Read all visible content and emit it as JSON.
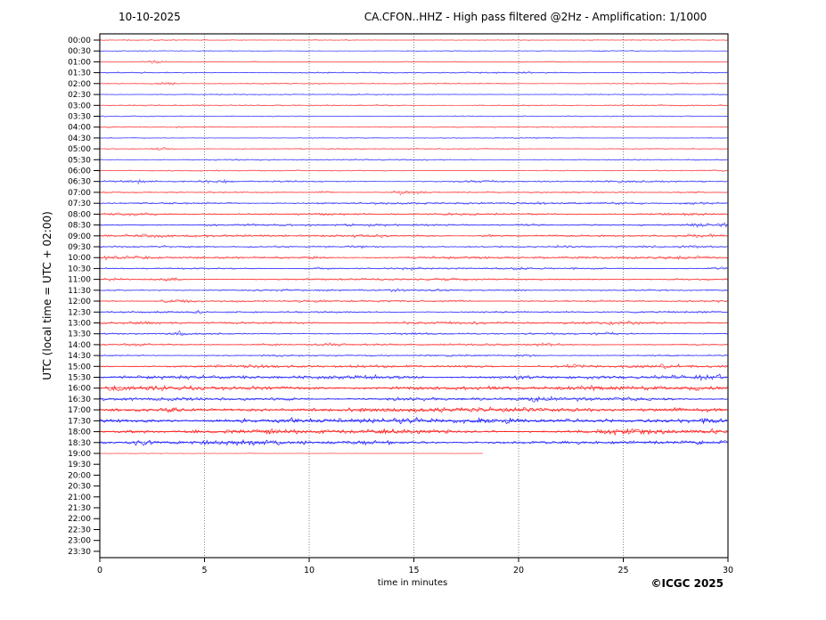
{
  "header": {
    "date": "10-10-2025",
    "title": "CA.CFON..HHZ - High pass filtered @2Hz - Amplification: 1/1000"
  },
  "axes": {
    "x_label": "time in minutes",
    "y_label": "UTC (local time = UTC + 02:00)",
    "x_ticks": [
      0,
      5,
      10,
      15,
      20,
      25,
      30
    ],
    "x_gridlines": [
      5,
      10,
      15,
      20,
      25
    ],
    "x_range": [
      0,
      30
    ]
  },
  "footer": {
    "copyright": "©ICGC 2025"
  },
  "colors": {
    "red": "#ff0000",
    "blue": "#0000ff",
    "grid": "#666666",
    "frame": "#000000",
    "background": "#ffffff"
  },
  "chart_data": {
    "type": "line",
    "title": "CA.CFON..HHZ - High pass filtered @2Hz - Amplification: 1/1000",
    "xlabel": "time in minutes",
    "ylabel": "UTC (local time = UTC + 02:00)",
    "x_range_minutes": [
      0,
      30
    ],
    "row_interval_minutes": 30,
    "rows": [
      {
        "time": "00:00",
        "color": "red",
        "activity": 0.3,
        "events": []
      },
      {
        "time": "00:30",
        "color": "blue",
        "activity": 0.35,
        "events": []
      },
      {
        "time": "01:00",
        "color": "red",
        "activity": 0.35,
        "events": [
          [
            2.7,
            1.5,
            0.25
          ],
          [
            7.4,
            0.6,
            0.2
          ]
        ]
      },
      {
        "time": "01:30",
        "color": "blue",
        "activity": 0.7,
        "events": []
      },
      {
        "time": "02:00",
        "color": "red",
        "activity": 0.5,
        "events": [
          [
            3.1,
            1.3,
            0.5
          ]
        ]
      },
      {
        "time": "02:30",
        "color": "blue",
        "activity": 0.45,
        "events": []
      },
      {
        "time": "03:00",
        "color": "red",
        "activity": 0.45,
        "events": [
          [
            13.8,
            0.6,
            0.4
          ],
          [
            24.8,
            0.6,
            0.3
          ]
        ]
      },
      {
        "time": "03:30",
        "color": "blue",
        "activity": 0.4,
        "events": []
      },
      {
        "time": "04:00",
        "color": "red",
        "activity": 0.45,
        "events": [
          [
            3.9,
            0.8,
            0.2
          ]
        ]
      },
      {
        "time": "04:30",
        "color": "blue",
        "activity": 0.45,
        "events": []
      },
      {
        "time": "05:00",
        "color": "red",
        "activity": 0.45,
        "events": [
          [
            3.0,
            1.4,
            0.3
          ]
        ]
      },
      {
        "time": "05:30",
        "color": "blue",
        "activity": 0.55,
        "events": []
      },
      {
        "time": "06:00",
        "color": "red",
        "activity": 0.45,
        "events": []
      },
      {
        "time": "06:30",
        "color": "blue",
        "activity": 0.75,
        "events": [
          [
            1.8,
            1.3,
            0.4
          ],
          [
            5.6,
            1.1,
            0.5
          ],
          [
            18.3,
            0.7,
            0.6
          ],
          [
            24.8,
            0.6,
            0.5
          ]
        ]
      },
      {
        "time": "07:00",
        "color": "red",
        "activity": 0.65,
        "events": [
          [
            10.7,
            1.4,
            0.3
          ],
          [
            14.6,
            1.7,
            0.5
          ],
          [
            28.2,
            0.8,
            0.5
          ]
        ]
      },
      {
        "time": "07:30",
        "color": "blue",
        "activity": 1.1,
        "events": [
          [
            25.0,
            0.9,
            0.8
          ],
          [
            28.5,
            0.8,
            0.6
          ]
        ]
      },
      {
        "time": "08:00",
        "color": "red",
        "activity": 1.1,
        "events": [
          [
            1.8,
            0.8,
            0.8
          ],
          [
            27.6,
            1.0,
            0.7
          ]
        ]
      },
      {
        "time": "08:30",
        "color": "blue",
        "activity": 1.1,
        "events": [
          [
            12.5,
            0.6,
            0.8
          ],
          [
            20.5,
            0.8,
            0.5
          ],
          [
            29.0,
            1.2,
            0.9
          ]
        ]
      },
      {
        "time": "09:00",
        "color": "red",
        "activity": 1.2,
        "events": [
          [
            1.5,
            0.9,
            1.2
          ],
          [
            13.0,
            0.7,
            0.6
          ],
          [
            18.6,
            0.8,
            0.5
          ],
          [
            28.6,
            0.8,
            0.5
          ]
        ]
      },
      {
        "time": "09:30",
        "color": "blue",
        "activity": 1.0,
        "events": [
          [
            12.6,
            0.8,
            0.5
          ],
          [
            15.2,
            0.7,
            0.5
          ],
          [
            22.2,
            0.7,
            0.5
          ],
          [
            28.3,
            0.7,
            0.4
          ]
        ]
      },
      {
        "time": "10:00",
        "color": "red",
        "activity": 1.2,
        "events": [
          [
            1.0,
            0.8,
            0.9
          ],
          [
            10.3,
            0.6,
            0.6
          ],
          [
            27.9,
            1.1,
            1.2
          ]
        ]
      },
      {
        "time": "10:30",
        "color": "blue",
        "activity": 0.9,
        "events": [
          [
            10.6,
            0.8,
            0.5
          ],
          [
            14.9,
            0.7,
            0.4
          ],
          [
            19.9,
            0.8,
            0.4
          ],
          [
            29.6,
            0.9,
            0.4
          ]
        ]
      },
      {
        "time": "11:00",
        "color": "red",
        "activity": 1.0,
        "events": [
          [
            0.5,
            0.7,
            0.4
          ],
          [
            3.4,
            2.7,
            0.25
          ],
          [
            16.5,
            0.6,
            0.7
          ],
          [
            23.5,
            0.6,
            0.5
          ]
        ]
      },
      {
        "time": "11:30",
        "color": "blue",
        "activity": 0.9,
        "events": [
          [
            14.1,
            0.7,
            0.4
          ],
          [
            20.1,
            0.8,
            0.4
          ]
        ]
      },
      {
        "time": "12:00",
        "color": "red",
        "activity": 1.0,
        "events": [
          [
            3.7,
            0.8,
            0.5
          ],
          [
            10.2,
            0.7,
            0.5
          ],
          [
            17.0,
            0.7,
            0.6
          ]
        ]
      },
      {
        "time": "12:30",
        "color": "blue",
        "activity": 0.9,
        "events": [
          [
            4.6,
            0.8,
            0.4
          ],
          [
            18.8,
            0.7,
            0.5
          ]
        ]
      },
      {
        "time": "13:00",
        "color": "red",
        "activity": 1.2,
        "events": [
          [
            2.3,
            0.8,
            0.6
          ],
          [
            16.0,
            0.8,
            1.5
          ],
          [
            24.6,
            0.9,
            0.6
          ]
        ]
      },
      {
        "time": "13:30",
        "color": "blue",
        "activity": 1.0,
        "events": [
          [
            3.9,
            1.8,
            0.3
          ],
          [
            15.4,
            0.7,
            0.5
          ],
          [
            24.1,
            0.7,
            0.5
          ]
        ]
      },
      {
        "time": "14:00",
        "color": "red",
        "activity": 1.0,
        "events": [
          [
            1.6,
            0.8,
            0.5
          ],
          [
            8.1,
            0.8,
            0.5
          ],
          [
            11.2,
            0.7,
            0.5
          ],
          [
            21.3,
            0.7,
            0.5
          ]
        ]
      },
      {
        "time": "14:30",
        "color": "blue",
        "activity": 0.9,
        "events": [
          [
            20.4,
            1.2,
            0.4
          ]
        ]
      },
      {
        "time": "15:00",
        "color": "red",
        "activity": 1.5,
        "events": [
          [
            17.6,
            0.9,
            0.6
          ],
          [
            22.6,
            0.8,
            0.6
          ],
          [
            27.5,
            1.0,
            1.5
          ]
        ]
      },
      {
        "time": "15:30",
        "color": "blue",
        "activity": 2.0,
        "events": [
          [
            13.8,
            0.9,
            1.0
          ],
          [
            19.5,
            0.8,
            0.8
          ],
          [
            29.3,
            0.9,
            0.6
          ]
        ]
      },
      {
        "time": "16:00",
        "color": "red",
        "activity": 2.1,
        "events": [
          [
            3.0,
            0.8,
            2.0
          ],
          [
            15.0,
            0.8,
            1.5
          ],
          [
            23.0,
            0.7,
            1.2
          ],
          [
            29.0,
            0.8,
            0.8
          ]
        ]
      },
      {
        "time": "16:30",
        "color": "blue",
        "activity": 1.9,
        "events": [
          [
            4.0,
            0.7,
            0.8
          ],
          [
            9.0,
            0.7,
            0.8
          ],
          [
            21.0,
            0.8,
            0.8
          ],
          [
            26.0,
            0.8,
            0.8
          ]
        ]
      },
      {
        "time": "17:00",
        "color": "red",
        "activity": 2.4,
        "events": [
          [
            3.4,
            1.6,
            0.15
          ],
          [
            8.0,
            0.7,
            1.0
          ],
          [
            17.0,
            0.7,
            1.5
          ],
          [
            27.0,
            0.8,
            1.5
          ]
        ]
      },
      {
        "time": "17:30",
        "color": "blue",
        "activity": 2.6,
        "events": [
          [
            6.5,
            0.9,
            0.5
          ],
          [
            9.0,
            0.8,
            0.5
          ],
          [
            14.8,
            1.0,
            1.0
          ],
          [
            19.2,
            0.8,
            0.5
          ],
          [
            23.0,
            0.9,
            1.0
          ],
          [
            29.0,
            1.0,
            0.8
          ]
        ]
      },
      {
        "time": "18:00",
        "color": "red",
        "activity": 2.4,
        "events": [
          [
            2.0,
            0.7,
            0.8
          ],
          [
            8.3,
            0.8,
            0.5
          ],
          [
            14.0,
            0.7,
            1.0
          ],
          [
            25.8,
            1.4,
            1.2
          ],
          [
            29.3,
            0.9,
            0.5
          ]
        ]
      },
      {
        "time": "18:30",
        "color": "blue",
        "activity": 2.2,
        "events": [
          [
            2.1,
            1.4,
            0.4
          ],
          [
            7.5,
            0.9,
            1.0
          ],
          [
            13.2,
            0.8,
            0.8
          ]
        ]
      },
      {
        "time": "19:00",
        "color": "red",
        "activity": 0.2,
        "events": [],
        "end_min": 18.3,
        "opacity": 0.45
      },
      {
        "time": "19:30",
        "color": "red",
        "empty": true
      },
      {
        "time": "20:00",
        "color": "red",
        "empty": true
      },
      {
        "time": "20:30",
        "color": "blue",
        "empty": true
      },
      {
        "time": "21:00",
        "color": "red",
        "empty": true
      },
      {
        "time": "21:30",
        "color": "blue",
        "empty": true
      },
      {
        "time": "22:00",
        "color": "red",
        "empty": true
      },
      {
        "time": "22:30",
        "color": "blue",
        "empty": true
      },
      {
        "time": "23:00",
        "color": "red",
        "empty": true
      },
      {
        "time": "23:30",
        "color": "blue",
        "empty": true
      }
    ]
  }
}
